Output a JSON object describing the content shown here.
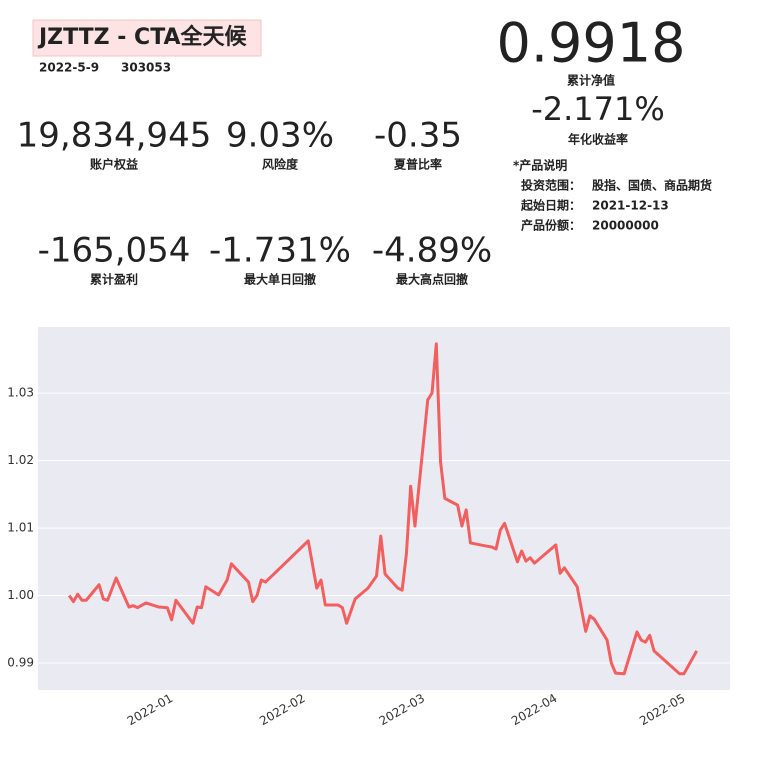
{
  "header": {
    "title": "JZTTZ - CTA全天候",
    "date": "2022-5-9",
    "code": "303053"
  },
  "summary": {
    "nav": {
      "value": "0.9918",
      "label": "累计净值"
    },
    "annual_return": {
      "value": "-2.171%",
      "label": "年化收益率"
    }
  },
  "metrics": [
    {
      "value": "19,834,945",
      "label": "账户权益"
    },
    {
      "value": "9.03%",
      "label": "风险度"
    },
    {
      "value": "-0.35",
      "label": "夏普比率"
    },
    {
      "value": "-165,054",
      "label": "累计盈利"
    },
    {
      "value": "-1.731%",
      "label": "最大单日回撤"
    },
    {
      "value": "-4.89%",
      "label": "最大高点回撤"
    }
  ],
  "product": {
    "title": "*产品说明",
    "rows": [
      [
        "投资范围：",
        "股指、国债、商品期货"
      ],
      [
        "起始日期：",
        "2021-12-13"
      ],
      [
        "产品份额：",
        "20000000"
      ]
    ]
  },
  "chart_data": {
    "type": "line",
    "x": [
      0,
      1,
      2,
      3,
      4,
      7,
      8,
      9,
      11,
      14,
      15,
      16,
      18,
      21,
      23,
      24,
      25,
      29,
      30,
      31,
      32,
      35,
      37,
      38,
      42,
      43,
      44,
      45,
      46,
      56,
      58,
      59,
      60,
      63,
      64,
      65,
      67,
      70,
      72,
      73,
      74,
      77,
      78,
      79,
      80,
      81,
      84,
      85,
      86,
      87,
      88,
      91,
      92,
      93,
      94,
      98,
      99,
      100,
      101,
      102,
      105,
      106,
      107,
      108,
      109,
      114,
      115,
      116,
      119,
      121,
      122,
      123,
      126,
      127,
      128,
      130,
      133,
      134,
      135,
      136,
      137,
      143,
      144,
      147
    ],
    "series": [
      {
        "name": "net value",
        "color": "#f25f5f",
        "values": [
          1.0,
          0.9991,
          1.0002,
          0.9993,
          0.9993,
          1.0016,
          0.9995,
          0.9993,
          1.0026,
          0.9983,
          0.9985,
          0.9982,
          0.9989,
          0.9983,
          0.9982,
          0.9964,
          0.9993,
          0.9959,
          0.9983,
          0.9982,
          1.0013,
          1.0001,
          1.0023,
          1.0047,
          1.002,
          0.9991,
          1.0,
          1.0023,
          1.002,
          1.0081,
          1.0011,
          1.0023,
          0.9986,
          0.9986,
          0.9982,
          0.9959,
          0.9995,
          1.0011,
          1.0029,
          1.0088,
          1.0032,
          1.0011,
          1.0008,
          1.0062,
          1.0162,
          1.0103,
          1.029,
          1.03,
          1.0373,
          1.0198,
          1.0144,
          1.0134,
          1.0103,
          1.0127,
          1.0078,
          1.0073,
          1.0072,
          1.0069,
          1.0097,
          1.0107,
          1.005,
          1.0066,
          1.0051,
          1.0056,
          1.0048,
          1.0075,
          1.0033,
          1.0041,
          1.0013,
          0.9947,
          0.997,
          0.9965,
          0.9934,
          0.99,
          0.9885,
          0.9884,
          0.9946,
          0.9934,
          0.9931,
          0.9941,
          0.9918,
          0.9884,
          0.9884,
          0.9918
        ]
      }
    ],
    "xlim": [
      -7.3,
      154.8
    ],
    "xticks": [
      {
        "value": 19,
        "label": "2022-01"
      },
      {
        "value": 50,
        "label": "2022-02"
      },
      {
        "value": 78,
        "label": "2022-03"
      },
      {
        "value": 109,
        "label": "2022-04"
      },
      {
        "value": 139,
        "label": "2022-05"
      }
    ],
    "ylim": [
      0.986,
      1.0398
    ],
    "yticks": [
      0.99,
      {
        "value": 1,
        "label": "1.00"
      },
      1.01,
      1.02,
      1.03
    ],
    "grid": true,
    "background": "#eaeaf2"
  }
}
